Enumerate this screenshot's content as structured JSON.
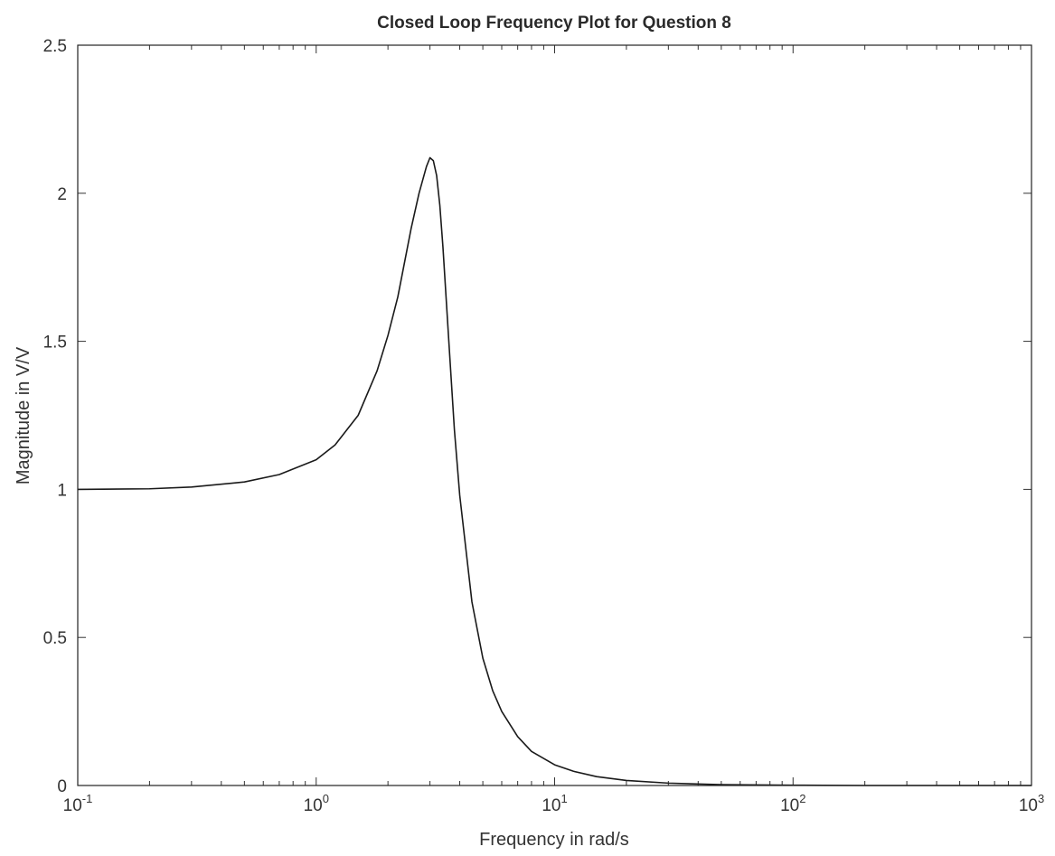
{
  "chart_data": {
    "type": "line",
    "title": "Closed Loop Frequency Plot for Question 8",
    "xlabel": "Frequency in rad/s",
    "ylabel": "Magnitude in V/V",
    "xscale": "log",
    "xlim": [
      0.1,
      1000
    ],
    "ylim": [
      0,
      2.5
    ],
    "grid": false,
    "xticks": [
      {
        "base": "10",
        "exp": "-1",
        "value": 0.1
      },
      {
        "base": "10",
        "exp": "0",
        "value": 1
      },
      {
        "base": "10",
        "exp": "1",
        "value": 10
      },
      {
        "base": "10",
        "exp": "2",
        "value": 100
      },
      {
        "base": "10",
        "exp": "3",
        "value": 1000
      }
    ],
    "yticks": [
      {
        "label": "0",
        "value": 0
      },
      {
        "label": "0.5",
        "value": 0.5
      },
      {
        "label": "1",
        "value": 1
      },
      {
        "label": "1.5",
        "value": 1.5
      },
      {
        "label": "2",
        "value": 2
      },
      {
        "label": "2.5",
        "value": 2.5
      }
    ],
    "series": [
      {
        "color": "#1a1a1a",
        "x": [
          0.1,
          0.2,
          0.3,
          0.5,
          0.7,
          1.0,
          1.2,
          1.5,
          1.8,
          2.0,
          2.2,
          2.5,
          2.7,
          2.9,
          3.0,
          3.1,
          3.2,
          3.3,
          3.4,
          3.6,
          3.8,
          4.0,
          4.5,
          5.0,
          5.5,
          6.0,
          7.0,
          8.0,
          10,
          12,
          15,
          20,
          30,
          50,
          100,
          200,
          500,
          1000
        ],
        "y": [
          1.0,
          1.002,
          1.008,
          1.025,
          1.05,
          1.1,
          1.15,
          1.25,
          1.4,
          1.52,
          1.65,
          1.88,
          2.0,
          2.09,
          2.12,
          2.11,
          2.06,
          1.96,
          1.82,
          1.5,
          1.2,
          0.98,
          0.62,
          0.43,
          0.32,
          0.25,
          0.165,
          0.115,
          0.07,
          0.048,
          0.03,
          0.017,
          0.008,
          0.003,
          0.001,
          0.0,
          0.0,
          0.0
        ]
      }
    ]
  }
}
